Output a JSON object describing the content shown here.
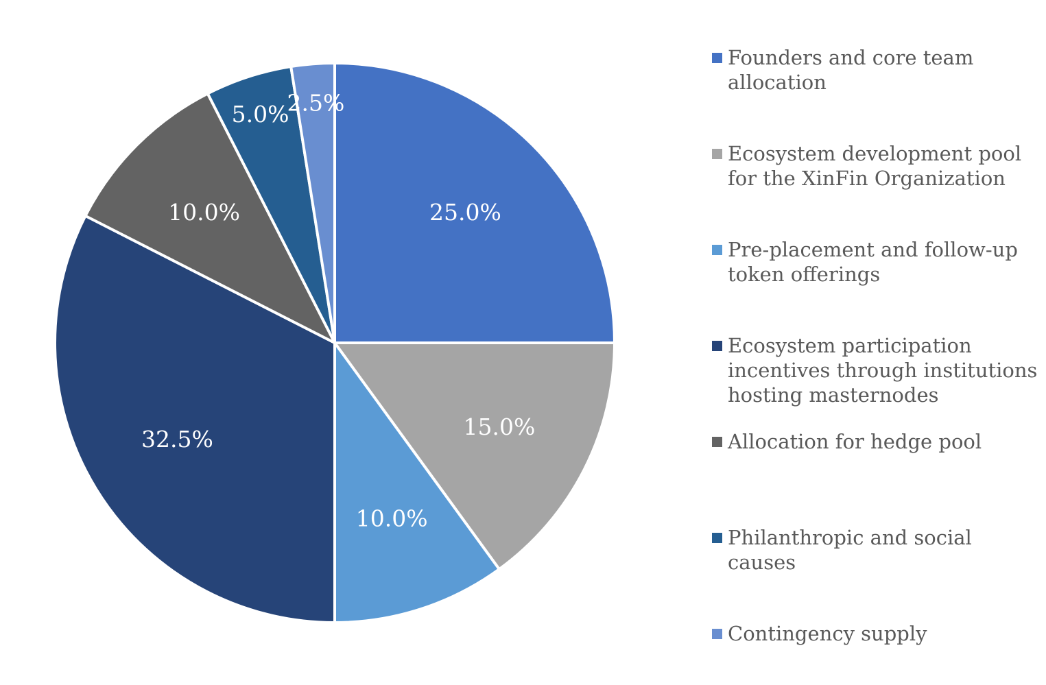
{
  "chart_data": {
    "type": "pie",
    "title": "",
    "start_angle_deg": 0,
    "direction": "clockwise",
    "legend_position": "right",
    "slices": [
      {
        "name": "Founders and core team allocation",
        "value": 25.0,
        "label": "25.0%",
        "color": "#4472C4"
      },
      {
        "name": "Ecosystem development pool for the XinFin Organization",
        "value": 15.0,
        "label": "15.0%",
        "color": "#A5A5A5"
      },
      {
        "name": "Pre-placement and follow-up token offerings",
        "value": 10.0,
        "label": "10.0%",
        "color": "#5B9BD5"
      },
      {
        "name": "Ecosystem participation incentives through institutions hosting masternodes",
        "value": 32.5,
        "label": "32.5%",
        "color": "#264478"
      },
      {
        "name": "Allocation for hedge pool",
        "value": 10.0,
        "label": "10.0%",
        "color": "#636363"
      },
      {
        "name": "Philanthropic and social causes",
        "value": 5.0,
        "label": "5.0%",
        "color": "#255E91"
      },
      {
        "name": "Contingency supply",
        "value": 2.5,
        "label": "2.5%",
        "color": "#698ED0"
      }
    ]
  }
}
